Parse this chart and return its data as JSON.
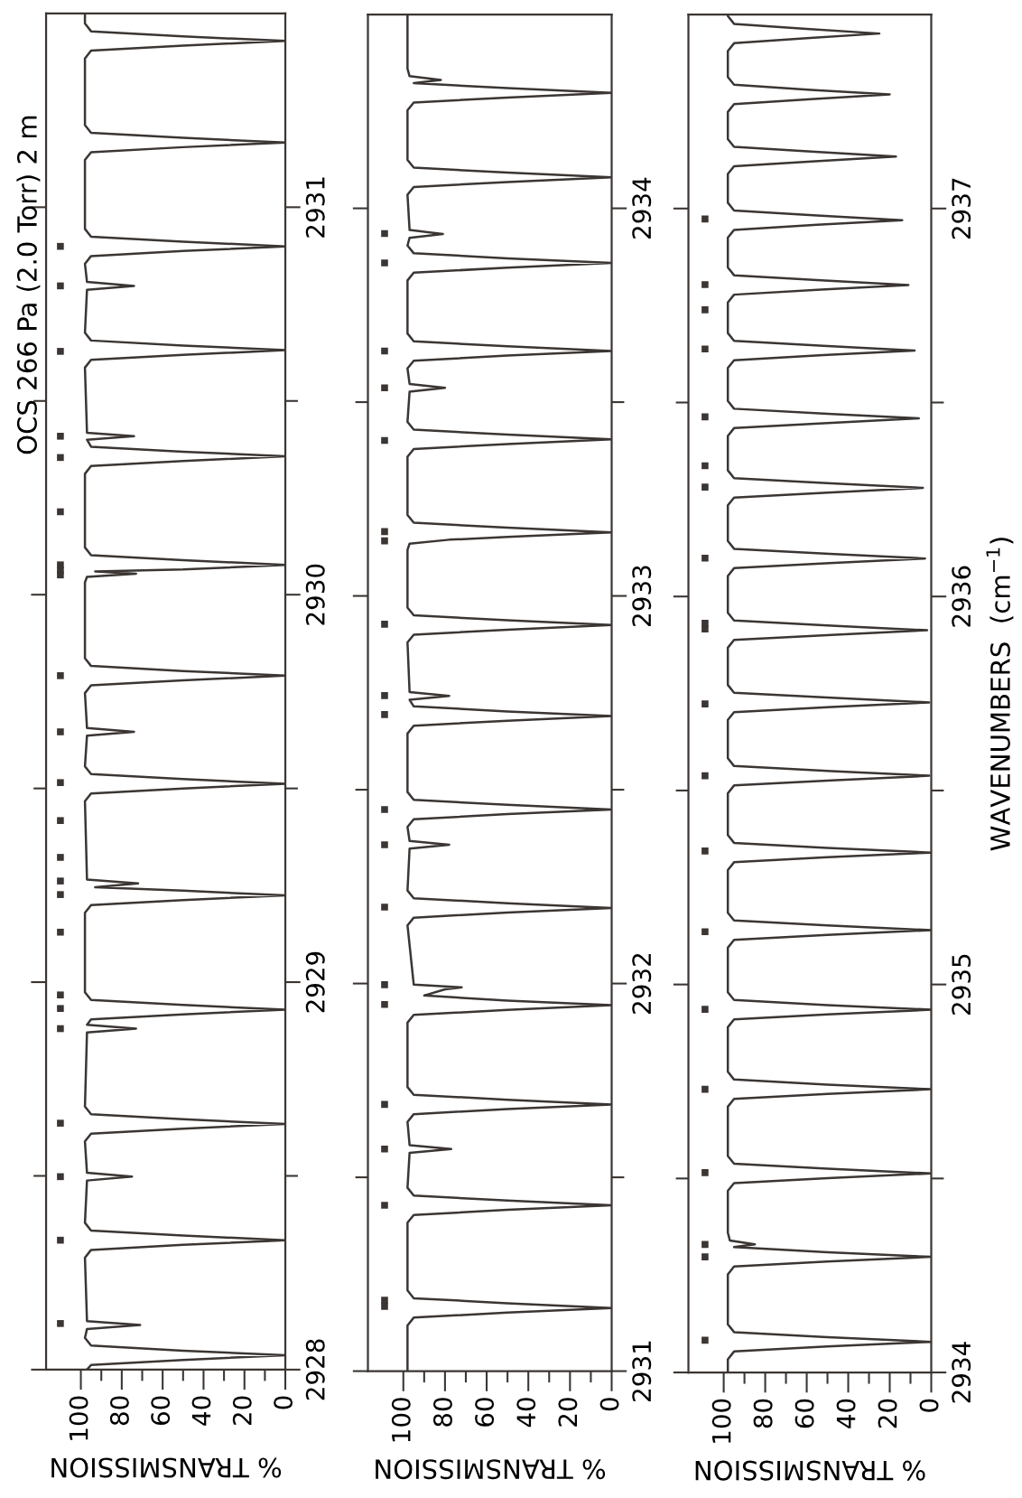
{
  "chart_data": [
    {
      "type": "line",
      "title": "OCS 266 Pa (2.0 Torr) 2 m",
      "xlabel": "% TRANSMISSION",
      "ylim": [
        2928,
        2931.5
      ],
      "yticks": [
        2928,
        {
          "value": 2928.5,
          "label": null
        },
        2929,
        {
          "value": 2929.5,
          "label": null
        },
        2930,
        {
          "value": 2930.5,
          "label": null
        },
        2931
      ],
      "xlim": [
        117,
        0
      ],
      "xticks": [
        0,
        {
          "value": 10,
          "label": null
        },
        20,
        {
          "value": 30,
          "label": null
        },
        40,
        {
          "value": 50,
          "label": null
        },
        60,
        {
          "value": 70,
          "label": null
        },
        80,
        {
          "value": 90,
          "label": null
        },
        100
      ],
      "series": [
        {
          "color": "#3b3633",
          "values": [
            2928.0,
            2928.012,
            2928.025,
            2928.037,
            2928.049,
            2928.062,
            2928.082,
            2928.105,
            2928.115,
            2928.125,
            2928.289,
            2928.309,
            2928.322,
            2928.334,
            2928.346,
            2928.359,
            2928.379,
            2928.488,
            2928.498,
            2928.508,
            2928.589,
            2928.609,
            2928.622,
            2928.634,
            2928.646,
            2928.659,
            2928.679,
            2928.87,
            2928.88,
            2928.89,
            2928.904,
            2928.917,
            2928.929,
            2928.941,
            2928.954,
            2928.974,
            2929.179,
            2929.199,
            2929.212,
            2929.224,
            2929.236,
            2929.245,
            2929.255,
            2929.265,
            2929.467,
            2929.487,
            2929.5,
            2929.512,
            2929.524,
            2929.537,
            2929.557,
            2929.636,
            2929.646,
            2929.656,
            2929.746,
            2929.766,
            2929.779,
            2929.791,
            2929.803,
            2929.816,
            2929.836,
            2930.032,
            2930.046,
            2930.054,
            2930.06,
            2930.065,
            2930.077,
            2930.089,
            2930.102,
            2930.122,
            2930.312,
            2930.332,
            2930.345,
            2930.357,
            2930.369,
            2930.382,
            2930.4,
            2930.409,
            2930.418,
            2930.586,
            2930.606,
            2930.619,
            2930.631,
            2930.643,
            2930.656,
            2930.676,
            2930.787,
            2930.797,
            2930.807,
            2930.854,
            2930.874,
            2930.887,
            2930.899,
            2930.911,
            2930.924,
            2930.944,
            2931.122,
            2931.142,
            2931.155,
            2931.167,
            2931.179,
            2931.192,
            2931.212,
            2931.384,
            2931.404,
            2931.417,
            2931.429,
            2931.441,
            2931.454,
            2931.474,
            2931.5
          ],
          "x": [
            97,
            95,
            50,
            0,
            50,
            95,
            98,
            97,
            71,
            97,
            98,
            95,
            50,
            0,
            50,
            95,
            98,
            97,
            75,
            97,
            98,
            95,
            50,
            0,
            50,
            95,
            98,
            97,
            73,
            97,
            95,
            50,
            0,
            50,
            95,
            98,
            98,
            95,
            50,
            0,
            50,
            93,
            72,
            97,
            98,
            95,
            50,
            0,
            50,
            95,
            98,
            97,
            74,
            97,
            98,
            95,
            50,
            0,
            50,
            95,
            98,
            98,
            97,
            73,
            93,
            50,
            0,
            50,
            95,
            98,
            98,
            95,
            50,
            0,
            50,
            95,
            97,
            74,
            97,
            98,
            95,
            50,
            0,
            50,
            95,
            98,
            97,
            74,
            97,
            98,
            95,
            50,
            0,
            50,
            95,
            98,
            98,
            95,
            50,
            0,
            50,
            95,
            98,
            98,
            95,
            50,
            0,
            50,
            95,
            98,
            98
          ]
        },
        {
          "type": "scatter",
          "marker": "square",
          "color": "#3b3633",
          "values": [
            2928.119,
            2928.334,
            2928.498,
            2928.636,
            2928.88,
            2928.932,
            2928.967,
            2929.129,
            2929.226,
            2929.261,
            2929.322,
            2929.417,
            2929.515,
            2929.646,
            2929.791,
            2930.051,
            2930.063,
            2930.077,
            2930.214,
            2930.354,
            2930.409,
            2930.628,
            2930.797,
            2930.899
          ],
          "x": [
            110,
            110,
            110,
            110,
            110,
            110,
            110,
            110,
            110,
            110,
            110,
            110,
            110,
            110,
            110,
            110,
            110,
            110,
            110,
            110,
            110,
            110,
            110,
            110
          ]
        }
      ]
    },
    {
      "type": "line",
      "xlabel": "% TRANSMISSION",
      "ylim": [
        2931,
        2934.5
      ],
      "yticks": [
        2931,
        {
          "value": 2931.5,
          "label": null
        },
        2932,
        {
          "value": 2932.5,
          "label": null
        },
        2933,
        {
          "value": 2933.5,
          "label": null
        },
        2934
      ],
      "xlim": [
        117,
        0
      ],
      "xticks": [
        0,
        {
          "value": 10,
          "label": null
        },
        20,
        {
          "value": 30,
          "label": null
        },
        40,
        {
          "value": 50,
          "label": null
        },
        60,
        {
          "value": 70,
          "label": null
        },
        80,
        {
          "value": 90,
          "label": null
        },
        100
      ],
      "series": [
        {
          "color": "#3b3633",
          "values": [
            2931.0,
            2931.118,
            2931.138,
            2931.151,
            2931.163,
            2931.175,
            2931.181,
            2931.188,
            2931.208,
            2931.383,
            2931.403,
            2931.416,
            2931.428,
            2931.44,
            2931.453,
            2931.473,
            2931.563,
            2931.573,
            2931.583,
            2931.643,
            2931.663,
            2931.676,
            2931.688,
            2931.7,
            2931.713,
            2931.733,
            2931.899,
            2931.919,
            2931.932,
            2931.944,
            2931.956,
            2931.969,
            2931.985,
            2931.99,
            2931.997,
            2932.15,
            2932.17,
            2932.183,
            2932.195,
            2932.207,
            2932.22,
            2932.24,
            2932.348,
            2932.358,
            2932.368,
            2932.404,
            2932.424,
            2932.437,
            2932.449,
            2932.461,
            2932.474,
            2932.494,
            2932.645,
            2932.665,
            2932.678,
            2932.69,
            2932.702,
            2932.715,
            2932.732,
            2932.742,
            2932.752,
            2932.88,
            2932.9,
            2932.913,
            2932.925,
            2932.937,
            2932.95,
            2932.97,
            2933.119,
            2933.135,
            2933.145,
            2933.152,
            2933.164,
            2933.176,
            2933.189,
            2933.209,
            2933.359,
            2933.379,
            2933.392,
            2933.404,
            2933.416,
            2933.429,
            2933.449,
            2933.527,
            2933.537,
            2933.547,
            2933.587,
            2933.607,
            2933.62,
            2933.632,
            2933.644,
            2933.657,
            2933.677,
            2933.814,
            2933.834,
            2933.847,
            2933.859,
            2933.871,
            2933.884,
            2933.904,
            2933.924,
            2933.934,
            2933.944,
            2934.035,
            2934.055,
            2934.068,
            2934.08,
            2934.092,
            2934.105,
            2934.125,
            2934.253,
            2934.273,
            2934.286,
            2934.298,
            2934.31,
            2934.323,
            2934.331,
            2934.341,
            2934.36,
            2934.5
          ],
          "x": [
            98,
            98,
            95,
            50,
            0,
            50,
            70,
            95,
            98,
            98,
            95,
            50,
            0,
            50,
            95,
            98,
            97,
            77,
            97,
            98,
            95,
            50,
            0,
            50,
            95,
            98,
            98,
            95,
            50,
            0,
            50,
            90,
            80,
            72,
            95,
            98,
            95,
            50,
            0,
            50,
            95,
            98,
            97,
            78,
            97,
            98,
            95,
            50,
            0,
            50,
            95,
            98,
            98,
            95,
            50,
            0,
            50,
            95,
            97,
            78,
            97,
            98,
            95,
            50,
            0,
            50,
            95,
            98,
            98,
            97,
            78,
            50,
            0,
            50,
            95,
            98,
            98,
            95,
            50,
            0,
            50,
            95,
            98,
            97,
            80,
            97,
            98,
            95,
            50,
            0,
            50,
            95,
            98,
            98,
            95,
            50,
            0,
            50,
            95,
            98,
            97,
            81,
            97,
            98,
            95,
            50,
            0,
            50,
            95,
            98,
            98,
            95,
            50,
            0,
            50,
            95,
            82,
            97,
            98,
            98
          ]
        },
        {
          "type": "scatter",
          "marker": "square",
          "color": "#3b3633",
          "values": [
            2931.167,
            2931.183,
            2931.428,
            2931.573,
            2931.688,
            2931.946,
            2931.997,
            2932.197,
            2932.358,
            2932.449,
            2932.694,
            2932.743,
            2932.927,
            2933.142,
            2933.166,
            2933.401,
            2933.537,
            2933.632,
            2933.859,
            2933.935
          ],
          "x": [
            109,
            109,
            109,
            109,
            109,
            109,
            109,
            109,
            109,
            109,
            109,
            109,
            109,
            109,
            109,
            109,
            109,
            109,
            109,
            109
          ]
        }
      ]
    },
    {
      "type": "line",
      "ylabel": "WAVENUMBERS  (cm$^{−1}$)",
      "xlabel": "% TRANSMISSION",
      "ylim": [
        2934,
        2937.5
      ],
      "yticks": [
        2934,
        {
          "value": 2934.5,
          "label": null
        },
        2935,
        {
          "value": 2935.5,
          "label": null
        },
        2936,
        {
          "value": 2936.5,
          "label": null
        },
        2937
      ],
      "xlim": [
        117,
        0
      ],
      "xticks": [
        0,
        {
          "value": 10,
          "label": null
        },
        20,
        {
          "value": 30,
          "label": null
        },
        40,
        {
          "value": 50,
          "label": null
        },
        60,
        {
          "value": 70,
          "label": null
        },
        80,
        {
          "value": 90,
          "label": null
        },
        100
      ],
      "series": [
        {
          "color": "#3b3633",
          "values": [
            2934.0,
            2934.034,
            2934.054,
            2934.067,
            2934.079,
            2934.091,
            2934.104,
            2934.124,
            2934.253,
            2934.273,
            2934.286,
            2934.298,
            2934.31,
            2934.323,
            2934.33,
            2934.34,
            2934.36,
            2934.468,
            2934.488,
            2934.501,
            2934.513,
            2934.525,
            2934.538,
            2934.558,
            2934.685,
            2934.705,
            2934.718,
            2934.73,
            2934.742,
            2934.755,
            2934.775,
            2934.89,
            2934.91,
            2934.923,
            2934.935,
            2934.947,
            2934.96,
            2934.98,
            2935.095,
            2935.115,
            2935.128,
            2935.14,
            2935.152,
            2935.165,
            2935.185,
            2935.295,
            2935.315,
            2935.328,
            2935.34,
            2935.352,
            2935.365,
            2935.385,
            2935.493,
            2935.513,
            2935.526,
            2935.538,
            2935.55,
            2935.563,
            2935.583,
            2935.682,
            2935.702,
            2935.715,
            2935.727,
            2935.739,
            2935.752,
            2935.772,
            2935.868,
            2935.888,
            2935.901,
            2935.913,
            2935.925,
            2935.938,
            2935.958,
            2936.053,
            2936.073,
            2936.086,
            2936.098,
            2936.11,
            2936.123,
            2936.143,
            2936.235,
            2936.255,
            2936.268,
            2936.28,
            2936.292,
            2936.305,
            2936.325,
            2936.414,
            2936.434,
            2936.447,
            2936.459,
            2936.471,
            2936.484,
            2936.504,
            2936.589,
            2936.609,
            2936.622,
            2936.634,
            2936.646,
            2936.659,
            2936.679,
            2936.758,
            2936.778,
            2936.791,
            2936.803,
            2936.815,
            2936.828,
            2936.848,
            2936.925,
            2936.945,
            2936.958,
            2936.97,
            2936.982,
            2936.995,
            2937.015,
            2937.089,
            2937.109,
            2937.122,
            2937.134,
            2937.146,
            2937.159,
            2937.179,
            2937.249,
            2937.269,
            2937.282,
            2937.294,
            2937.306,
            2937.319,
            2937.339,
            2937.406,
            2937.426,
            2937.439,
            2937.451,
            2937.463,
            2937.476,
            2937.496,
            2937.5
          ],
          "x": [
            98,
            98,
            95,
            50,
            0,
            50,
            95,
            98,
            98,
            95,
            50,
            0,
            50,
            95,
            85,
            97,
            98,
            98,
            95,
            50,
            0,
            50,
            95,
            98,
            98,
            95,
            50,
            0,
            50,
            95,
            98,
            98,
            95,
            50,
            0,
            50,
            95,
            98,
            98,
            95,
            50,
            0,
            50,
            95,
            98,
            98,
            95,
            50,
            0,
            50,
            95,
            98,
            98,
            95,
            48,
            1,
            48,
            95,
            98,
            98,
            95,
            48,
            1,
            48,
            95,
            98,
            98,
            95,
            48,
            2,
            48,
            95,
            98,
            98,
            95,
            49,
            3,
            49,
            95,
            98,
            98,
            95,
            50,
            4,
            50,
            95,
            98,
            98,
            95,
            50,
            6,
            50,
            95,
            98,
            98,
            95,
            52,
            8,
            52,
            95,
            98,
            98,
            95,
            53,
            11,
            53,
            95,
            98,
            98,
            95,
            55,
            14,
            55,
            95,
            98,
            98,
            95,
            56,
            17,
            56,
            95,
            98,
            98,
            95,
            58,
            20,
            58,
            95,
            98,
            98,
            95,
            60,
            25,
            60,
            95,
            98,
            98
          ]
        },
        {
          "type": "scatter",
          "marker": "square",
          "color": "#3b3633",
          "values": [
            2934.083,
            2934.298,
            2934.33,
            2934.515,
            2934.73,
            2934.936,
            2935.136,
            2935.344,
            2935.538,
            2935.723,
            2935.916,
            2935.931,
            2936.099,
            2936.282,
            2936.337,
            2936.463,
            2936.638,
            2936.739,
            2936.804,
            2936.973
          ],
          "x": [
            109,
            109,
            109,
            109,
            109,
            109,
            109,
            109,
            109,
            109,
            109,
            109,
            109,
            109,
            109,
            109,
            109,
            109,
            109,
            109
          ]
        }
      ]
    }
  ]
}
